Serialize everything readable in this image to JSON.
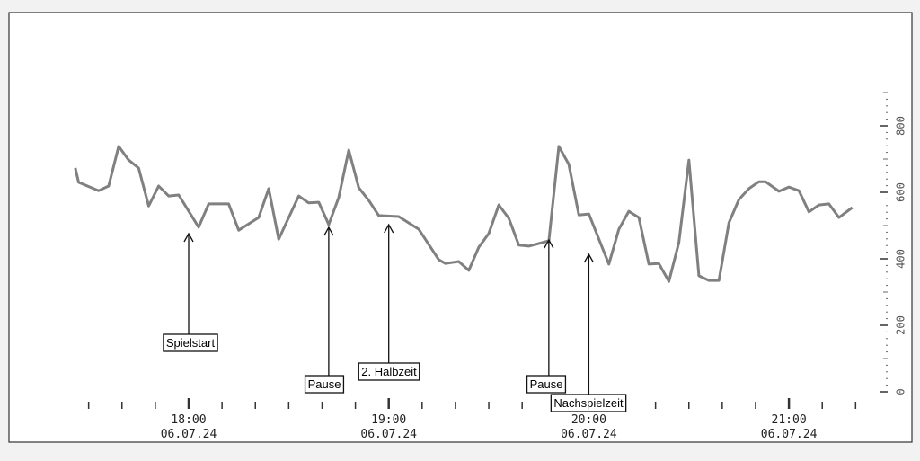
{
  "chart_data": {
    "type": "line",
    "title": "",
    "xlabel": "",
    "ylabel": "",
    "line_color": "#808080",
    "y_axis_position": "right",
    "ylim": [
      0,
      900
    ],
    "y_ticks": [
      "0",
      "200",
      "400",
      "600",
      "800"
    ],
    "x_ticks": [
      {
        "time": "18:00",
        "date": "06.07.24"
      },
      {
        "time": "19:00",
        "date": "06.07.24"
      },
      {
        "time": "20:00",
        "date": "06.07.24"
      },
      {
        "time": "21:00",
        "date": "06.07.24"
      }
    ],
    "x": [
      "17:26",
      "17:27",
      "17:33",
      "17:36",
      "17:39",
      "17:42",
      "17:45",
      "17:48",
      "17:51",
      "17:54",
      "17:57",
      "18:03",
      "18:06",
      "18:12",
      "18:15",
      "18:21",
      "18:24",
      "18:27",
      "18:33",
      "18:36",
      "18:39",
      "18:42",
      "18:45",
      "18:48",
      "18:51",
      "18:54",
      "18:57",
      "19:03",
      "19:09",
      "19:15",
      "19:17",
      "19:21",
      "19:24",
      "19:27",
      "19:30",
      "19:33",
      "19:36",
      "19:39",
      "19:42",
      "19:48",
      "19:51",
      "19:54",
      "19:57",
      "20:00",
      "20:06",
      "20:09",
      "20:12",
      "20:15",
      "20:18",
      "20:21",
      "20:24",
      "20:27",
      "20:30",
      "20:33",
      "20:36",
      "20:39",
      "20:42",
      "20:45",
      "20:48",
      "20:51",
      "20:53",
      "20:57",
      "21:00",
      "21:03",
      "21:06",
      "21:09",
      "21:12",
      "21:15",
      "21:19"
    ],
    "values": [
      673,
      630,
      605,
      619,
      738,
      697,
      673,
      559,
      619,
      589,
      592,
      495,
      565,
      565,
      486,
      524,
      611,
      459,
      589,
      568,
      570,
      503,
      584,
      727,
      614,
      576,
      530,
      527,
      489,
      397,
      386,
      392,
      365,
      435,
      476,
      562,
      522,
      441,
      438,
      454,
      738,
      684,
      532,
      535,
      384,
      489,
      543,
      524,
      384,
      386,
      332,
      449,
      697,
      349,
      335,
      335,
      508,
      578,
      611,
      632,
      632,
      603,
      616,
      605,
      541,
      562,
      565,
      524,
      554
    ],
    "annotations": [
      {
        "label": "Spielstart",
        "time": "18:00"
      },
      {
        "label": "Pause",
        "time": "18:42"
      },
      {
        "label": "2. Halbzeit",
        "time": "19:00"
      },
      {
        "label": "Pause",
        "time": "19:48"
      },
      {
        "label": "Nachspielzeit",
        "time": "20:00"
      }
    ]
  }
}
